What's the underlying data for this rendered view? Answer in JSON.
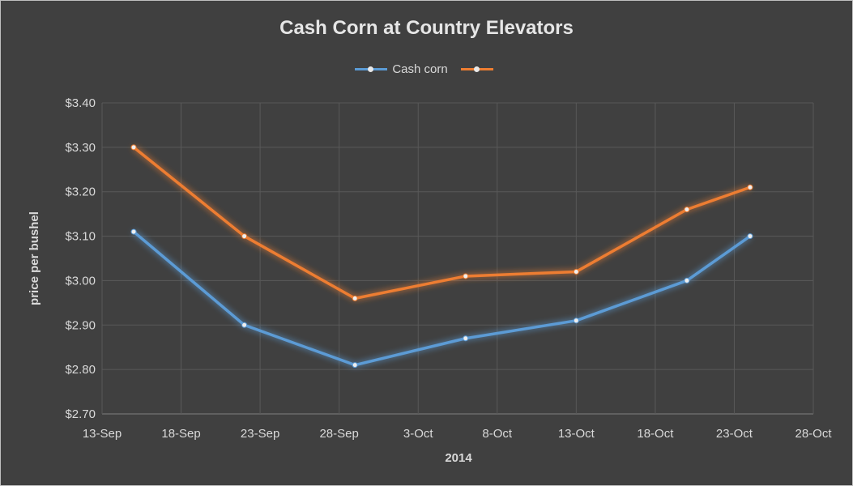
{
  "chart_data": {
    "type": "line",
    "title": "Cash Corn at Country Elevators",
    "xlabel": "2014",
    "ylabel": "price per bushel",
    "x_ticks": [
      "13-Sep",
      "18-Sep",
      "23-Sep",
      "28-Sep",
      "3-Oct",
      "8-Oct",
      "13-Oct",
      "18-Oct",
      "23-Oct",
      "28-Oct"
    ],
    "x_tick_dates": [
      "2014-09-13",
      "2014-09-18",
      "2014-09-23",
      "2014-09-28",
      "2014-10-03",
      "2014-10-08",
      "2014-10-13",
      "2014-10-18",
      "2014-10-23",
      "2014-10-28"
    ],
    "y_ticks": [
      "$2.70",
      "$2.80",
      "$2.90",
      "$3.00",
      "$3.10",
      "$3.20",
      "$3.30",
      "$3.40"
    ],
    "ylim": [
      2.7,
      3.4
    ],
    "xlim": [
      "2014-09-13",
      "2014-10-28"
    ],
    "grid": true,
    "legend_position": "top",
    "x": [
      "2014-09-15",
      "2014-09-22",
      "2014-09-29",
      "2014-10-06",
      "2014-10-13",
      "2014-10-20",
      "2014-10-24"
    ],
    "series": [
      {
        "name": "Cash corn",
        "color": "#5b9bd5",
        "values": [
          3.11,
          2.9,
          2.81,
          2.87,
          2.91,
          3.0,
          3.1
        ]
      },
      {
        "name": "",
        "color": "#ed7d31",
        "values": [
          3.3,
          3.1,
          2.96,
          3.01,
          3.02,
          3.16,
          3.21
        ]
      }
    ]
  }
}
